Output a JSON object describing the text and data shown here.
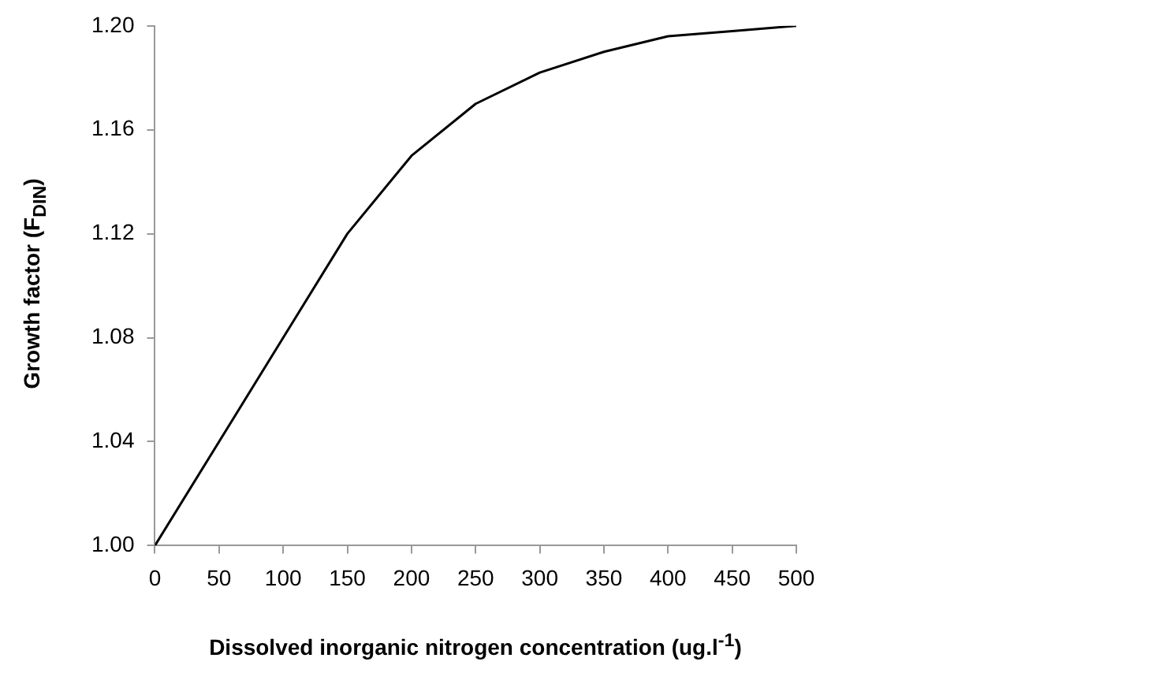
{
  "chart_data": {
    "type": "line",
    "xlabel": "Dissolved inorganic nitrogen concentration (ug.l$^{-1}$)",
    "ylabel": "Growth factor (F$_{DIN}$)",
    "x": [
      0,
      50,
      100,
      150,
      200,
      250,
      300,
      350,
      400,
      450,
      500
    ],
    "series": [
      {
        "color": "#000000",
        "values": [
          1.0,
          1.04,
          1.08,
          1.12,
          1.15,
          1.17,
          1.182,
          1.19,
          1.196,
          1.198,
          1.2
        ]
      }
    ],
    "xlim": [
      0,
      500
    ],
    "xticks": [
      0,
      50,
      100,
      150,
      200,
      250,
      300,
      350,
      400,
      450,
      500
    ],
    "ylim": [
      1.0,
      1.2
    ],
    "yticks": [
      {
        "value": 1.0,
        "label": "1.00"
      },
      {
        "value": 1.04,
        "label": "1.04"
      },
      {
        "value": 1.08,
        "label": "1.08"
      },
      {
        "value": 1.12,
        "label": "1.12"
      },
      {
        "value": 1.16,
        "label": "1.16"
      },
      {
        "value": 1.2,
        "label": "1.20"
      }
    ],
    "grid": false,
    "legend": false,
    "marker": "none",
    "line_style": "solid"
  }
}
